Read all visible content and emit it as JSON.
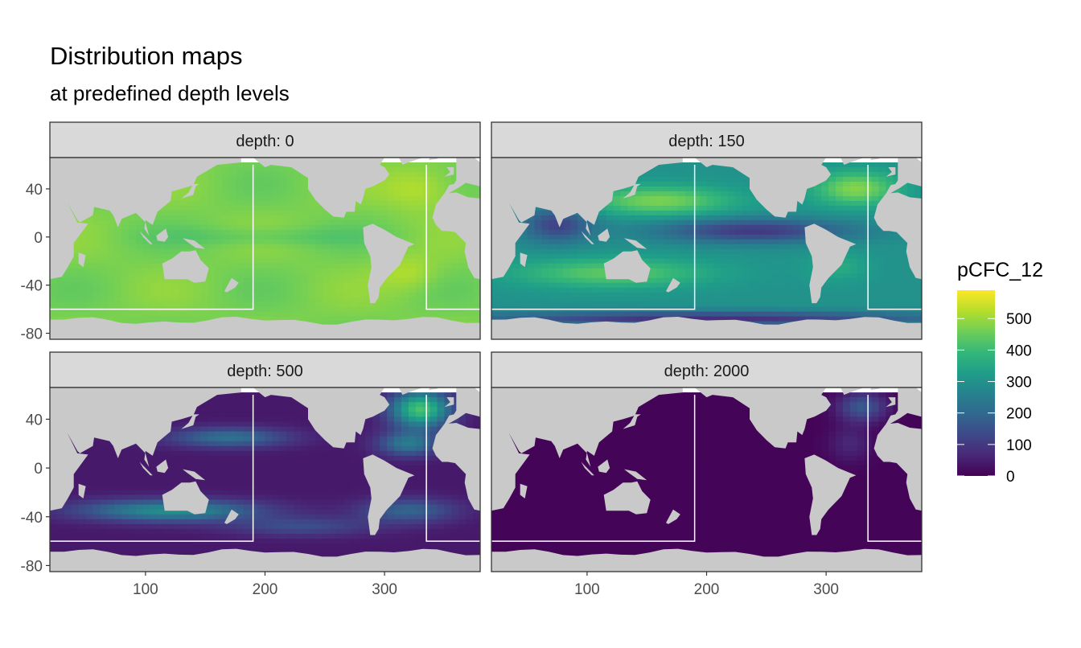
{
  "chart_data": {
    "type": "heatmap",
    "title": "Distribution maps",
    "subtitle": "at predefined depth levels",
    "xlabel": "",
    "ylabel": "",
    "xlim": [
      20,
      380
    ],
    "ylim": [
      -85,
      66
    ],
    "x_ticks": [
      100,
      200,
      300
    ],
    "y_ticks": [
      40,
      0,
      -40,
      -80
    ],
    "x_tick_labels": [
      "100",
      "200",
      "300"
    ],
    "y_tick_labels": [
      "40",
      "0",
      "-40",
      "-80"
    ],
    "facet_label_prefix": "depth: ",
    "facets": [
      {
        "depth": 0,
        "label": "depth: 0",
        "typical_value": 480,
        "range": [
          380,
          580
        ]
      },
      {
        "depth": 150,
        "label": "depth: 150",
        "typical_value": 350,
        "range": [
          80,
          540
        ]
      },
      {
        "depth": 500,
        "label": "depth: 500",
        "typical_value": 90,
        "range": [
          0,
          460
        ]
      },
      {
        "depth": 2000,
        "label": "depth: 2000",
        "typical_value": 10,
        "range": [
          0,
          180
        ]
      }
    ],
    "section_boundary": {
      "x_left": 190,
      "x_right": 335,
      "y_top": 60,
      "y_bottom": -60
    },
    "legend": {
      "title": "pCFC_12",
      "position": "right",
      "breaks": [
        500,
        400,
        300,
        200,
        100,
        0
      ],
      "break_labels": [
        "500",
        "400",
        "300",
        "200",
        "100",
        "0"
      ],
      "limits": [
        0,
        590
      ],
      "palette": "viridis"
    },
    "grid": false
  },
  "colors": {
    "land": "#c9c9c9",
    "strip_fill": "#d9d9d9",
    "panel_border": "#333333",
    "viridis": [
      "#440154",
      "#482878",
      "#3e4989",
      "#31688e",
      "#26828e",
      "#1f9e89",
      "#35b779",
      "#6ece58",
      "#b5de2b",
      "#fde725"
    ]
  }
}
